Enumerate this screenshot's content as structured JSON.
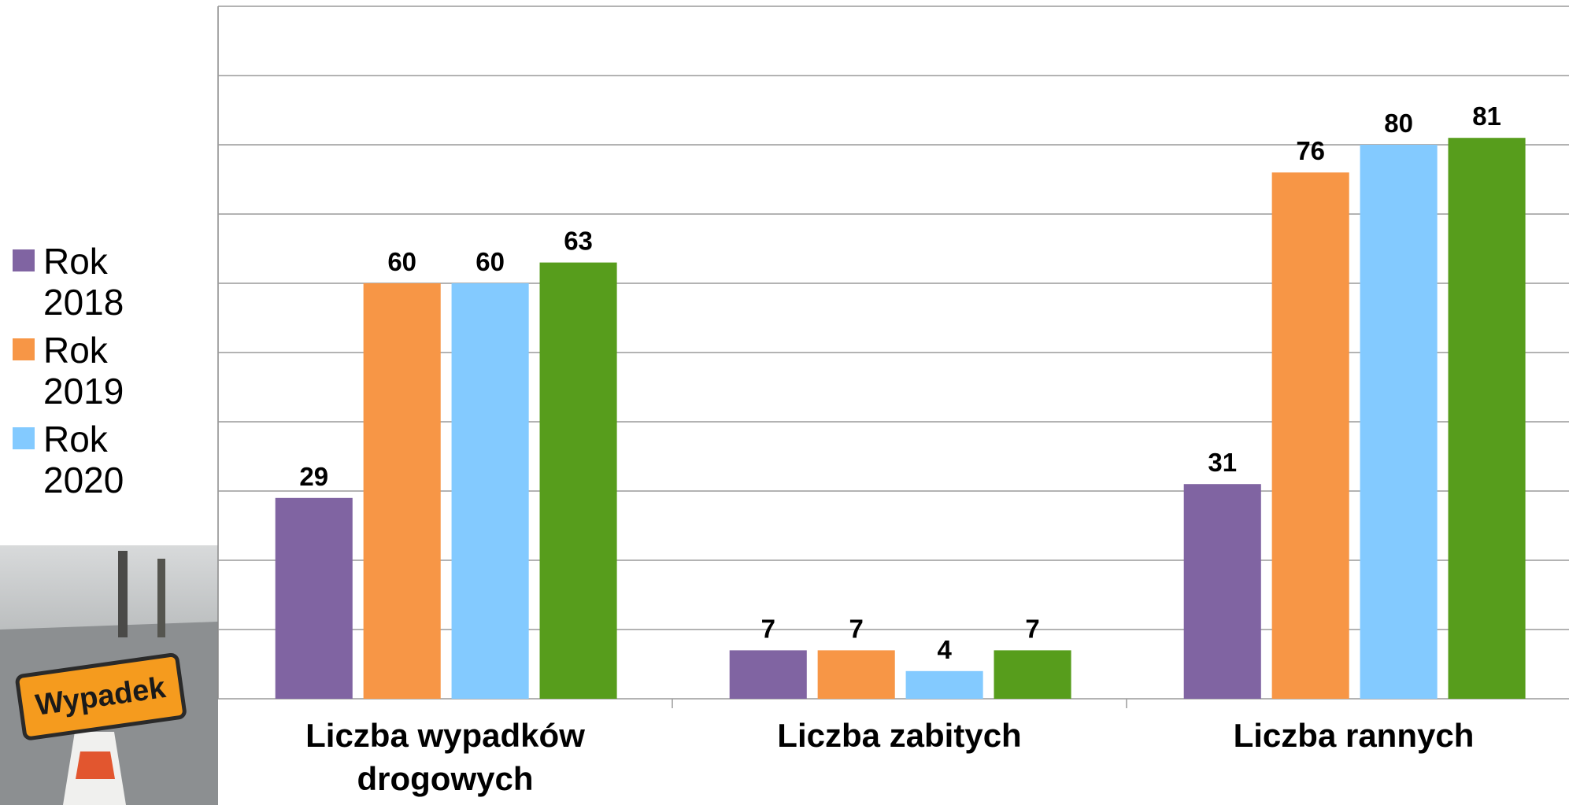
{
  "chart_data": {
    "type": "bar",
    "categories": [
      "Liczba wypadków drogowych",
      "Liczba zabitych",
      "Liczba rannych"
    ],
    "series": [
      {
        "name": "Rok 2018",
        "color": "#8064a2",
        "values": [
          29,
          7,
          31
        ]
      },
      {
        "name": "Rok 2019",
        "color": "#f79646",
        "values": [
          60,
          7,
          76
        ]
      },
      {
        "name": "Rok 2020",
        "color": "#83caff",
        "values": [
          60,
          4,
          80
        ]
      },
      {
        "color": "#579d1c",
        "values": [
          63,
          7,
          81
        ]
      }
    ],
    "ylim": [
      0,
      100
    ],
    "yticks": [
      0,
      10,
      20,
      30,
      40,
      50,
      60,
      70,
      80,
      90,
      100
    ],
    "grid": true
  },
  "photo": {
    "sign": "Wypadek"
  }
}
